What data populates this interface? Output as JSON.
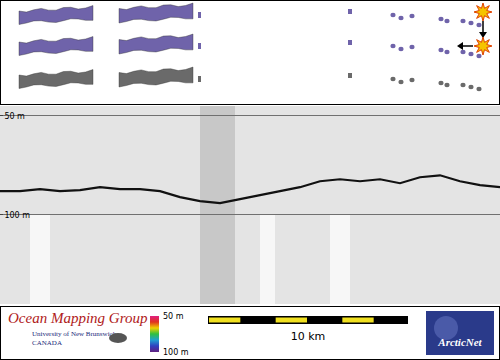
{
  "chart_data": {
    "type": "line",
    "x": [
      0,
      1,
      2,
      3,
      4,
      5,
      6,
      7,
      8,
      9,
      10,
      11,
      12,
      13,
      14,
      15,
      16,
      17,
      18,
      19,
      20,
      21,
      22,
      23,
      24,
      25
    ],
    "values": [
      88,
      88,
      87,
      88,
      87.5,
      86,
      87,
      87,
      88,
      91,
      93,
      94,
      92,
      90,
      88,
      86,
      83,
      82,
      83,
      82,
      84,
      81,
      80,
      83,
      85,
      86
    ],
    "color": "#111111",
    "xlim": [
      0,
      25
    ],
    "ylim": [
      145,
      45
    ],
    "yticks": [
      {
        "value": 50,
        "label": "50 m"
      },
      {
        "value": 100,
        "label": "100 m"
      }
    ],
    "grid": true,
    "tick_labels": "y"
  },
  "colorbar": {
    "range": [
      50,
      100
    ],
    "ticks": [
      {
        "value": 50,
        "label": "50 m"
      },
      {
        "value": 100,
        "label": "100 m"
      }
    ]
  },
  "scale_bar": {
    "length": 10,
    "label": "10 km"
  },
  "logos": {
    "left": {
      "title": "Ocean Mapping Group",
      "lines": [
        "University of New Brunswick",
        "CANADA"
      ]
    },
    "right": "ArcticNet"
  }
}
